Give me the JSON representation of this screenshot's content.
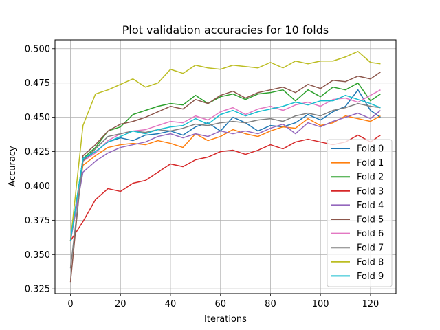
{
  "chart_data": {
    "type": "line",
    "title": "Plot validation accuracies for 10 folds",
    "xlabel": "Iterations",
    "ylabel": "Accuracy",
    "xlim": [
      -6.2,
      130.2
    ],
    "ylim": [
      0.3216,
      0.5064
    ],
    "xticks": [
      0,
      20,
      40,
      60,
      80,
      100,
      120
    ],
    "yticks": [
      0.325,
      0.35,
      0.375,
      0.4,
      0.425,
      0.45,
      0.475,
      0.5
    ],
    "ytick_labels": [
      "0.325",
      "0.350",
      "0.375",
      "0.400",
      "0.425",
      "0.450",
      "0.475",
      "0.500"
    ],
    "grid": true,
    "legend_position": "lower-right",
    "x": [
      0,
      5,
      10,
      15,
      20,
      25,
      30,
      35,
      40,
      45,
      50,
      55,
      60,
      65,
      70,
      75,
      80,
      85,
      90,
      95,
      100,
      105,
      110,
      115,
      120,
      124
    ],
    "series": [
      {
        "name": "Fold 0",
        "color": "#1f77b4",
        "values": [
          0.36,
          0.419,
          0.425,
          0.432,
          0.435,
          0.433,
          0.437,
          0.438,
          0.44,
          0.437,
          0.443,
          0.446,
          0.44,
          0.45,
          0.446,
          0.44,
          0.444,
          0.443,
          0.446,
          0.452,
          0.448,
          0.454,
          0.458,
          0.47,
          0.455,
          0.45
        ]
      },
      {
        "name": "Fold 1",
        "color": "#ff7f0e",
        "values": [
          0.36,
          0.415,
          0.422,
          0.428,
          0.43,
          0.431,
          0.43,
          0.433,
          0.431,
          0.428,
          0.438,
          0.433,
          0.436,
          0.441,
          0.438,
          0.436,
          0.44,
          0.443,
          0.442,
          0.449,
          0.444,
          0.446,
          0.451,
          0.449,
          0.447,
          0.451
        ]
      },
      {
        "name": "Fold 2",
        "color": "#2ca02c",
        "values": [
          0.36,
          0.42,
          0.428,
          0.44,
          0.443,
          0.452,
          0.455,
          0.458,
          0.46,
          0.459,
          0.466,
          0.46,
          0.465,
          0.467,
          0.463,
          0.467,
          0.468,
          0.47,
          0.462,
          0.47,
          0.465,
          0.472,
          0.47,
          0.475,
          0.462,
          0.467
        ]
      },
      {
        "name": "Fold 3",
        "color": "#d62728",
        "values": [
          0.36,
          0.374,
          0.39,
          0.398,
          0.396,
          0.402,
          0.404,
          0.41,
          0.416,
          0.414,
          0.419,
          0.421,
          0.425,
          0.426,
          0.423,
          0.426,
          0.43,
          0.427,
          0.432,
          0.434,
          0.432,
          0.43,
          0.432,
          0.437,
          0.432,
          0.437
        ]
      },
      {
        "name": "Fold 4",
        "color": "#9467bd",
        "values": [
          0.36,
          0.41,
          0.418,
          0.424,
          0.428,
          0.43,
          0.432,
          0.436,
          0.438,
          0.435,
          0.438,
          0.436,
          0.44,
          0.438,
          0.44,
          0.438,
          0.442,
          0.445,
          0.438,
          0.446,
          0.443,
          0.447,
          0.45,
          0.453,
          0.449,
          0.455
        ]
      },
      {
        "name": "Fold 5",
        "color": "#8c564b",
        "values": [
          0.33,
          0.422,
          0.43,
          0.44,
          0.445,
          0.447,
          0.45,
          0.454,
          0.458,
          0.456,
          0.463,
          0.46,
          0.466,
          0.469,
          0.464,
          0.468,
          0.47,
          0.472,
          0.468,
          0.474,
          0.471,
          0.477,
          0.476,
          0.48,
          0.478,
          0.483
        ]
      },
      {
        "name": "Fold 6",
        "color": "#e377c2",
        "values": [
          0.36,
          0.418,
          0.424,
          0.433,
          0.438,
          0.44,
          0.441,
          0.444,
          0.447,
          0.446,
          0.451,
          0.448,
          0.454,
          0.457,
          0.452,
          0.456,
          0.458,
          0.455,
          0.459,
          0.461,
          0.458,
          0.463,
          0.464,
          0.461,
          0.466,
          0.47
        ]
      },
      {
        "name": "Fold 7",
        "color": "#7f7f7f",
        "values": [
          0.34,
          0.418,
          0.427,
          0.436,
          0.438,
          0.44,
          0.439,
          0.441,
          0.44,
          0.442,
          0.445,
          0.444,
          0.446,
          0.447,
          0.446,
          0.448,
          0.449,
          0.447,
          0.451,
          0.453,
          0.451,
          0.455,
          0.457,
          0.46,
          0.458,
          0.457
        ]
      },
      {
        "name": "Fold 8",
        "color": "#bcbd22",
        "values": [
          0.36,
          0.444,
          0.467,
          0.47,
          0.474,
          0.478,
          0.472,
          0.475,
          0.485,
          0.482,
          0.488,
          0.486,
          0.485,
          0.488,
          0.487,
          0.486,
          0.49,
          0.486,
          0.491,
          0.489,
          0.491,
          0.491,
          0.494,
          0.498,
          0.49,
          0.489
        ]
      },
      {
        "name": "Fold 9",
        "color": "#17becf",
        "values": [
          0.36,
          0.42,
          0.425,
          0.432,
          0.436,
          0.44,
          0.438,
          0.441,
          0.443,
          0.444,
          0.449,
          0.445,
          0.452,
          0.455,
          0.451,
          0.454,
          0.456,
          0.458,
          0.461,
          0.459,
          0.462,
          0.462,
          0.466,
          0.463,
          0.46,
          0.457
        ]
      }
    ]
  }
}
